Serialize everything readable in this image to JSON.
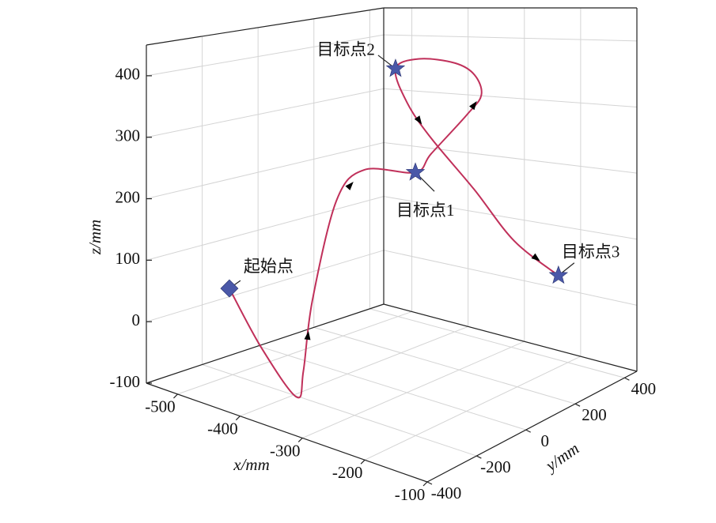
{
  "chart_data": {
    "type": "line3d",
    "x_label": "x/mm",
    "y_label": "y/mm",
    "z_label": "z/mm",
    "xlim": [
      -550,
      -100
    ],
    "ylim": [
      -400,
      450
    ],
    "zlim": [
      -100,
      450
    ],
    "xticks": [
      -500,
      -400,
      -300,
      -200,
      -100
    ],
    "yticks": [
      -400,
      -200,
      0,
      200,
      400
    ],
    "zticks": [
      -100,
      0,
      100,
      200,
      300,
      400
    ],
    "grid": true,
    "series": [
      {
        "color": "#c0305a",
        "x": [
          -500,
          -437,
          -380,
          -374,
          -361,
          -338,
          -311,
          -280,
          -289,
          -316,
          -338,
          -361,
          -379,
          -402,
          -415,
          -370,
          -325,
          -258,
          -181,
          -100
        ],
        "y": [
          -212,
          -236,
          -235,
          -223,
          -219,
          -181,
          -138,
          -13,
          68,
          265,
          368,
          392,
          357,
          272,
          212,
          158,
          149,
          164,
          145,
          132
        ],
        "z": [
          43,
          -31,
          -91,
          -51,
          61,
          214,
          260,
          245,
          262,
          296,
          314,
          343,
          366,
          381,
          370,
          323,
          272,
          198,
          134,
          99
        ]
      }
    ],
    "point_color": "#4a58a8",
    "points": [
      {
        "label": "起始点",
        "marker": "diamond",
        "x": -500,
        "y": -212,
        "z": 43
      },
      {
        "label": "目标点1",
        "marker": "star",
        "x": -280,
        "y": -13,
        "z": 245
      },
      {
        "label": "目标点2",
        "marker": "star",
        "x": -415,
        "y": 212,
        "z": 370
      },
      {
        "label": "目标点3",
        "marker": "star",
        "x": -100,
        "y": 132,
        "z": 99
      }
    ]
  }
}
